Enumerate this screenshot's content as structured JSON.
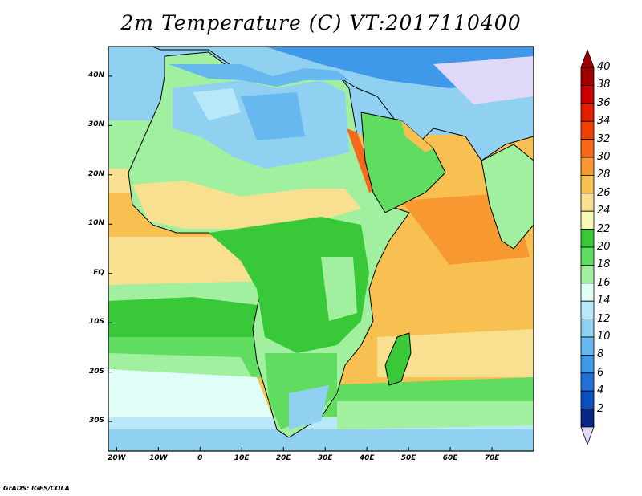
{
  "title": "2m Temperature (C) VT:2017110400",
  "credit": "GrADS: IGES/COLA",
  "map": {
    "projection": "latlon",
    "lon_range": [
      -22,
      80
    ],
    "lat_range": [
      -36,
      46
    ],
    "lat_labels": [
      {
        "value": 40,
        "label": "40N"
      },
      {
        "value": 30,
        "label": "30N"
      },
      {
        "value": 20,
        "label": "20N"
      },
      {
        "value": 10,
        "label": "10N"
      },
      {
        "value": 0,
        "label": "EQ"
      },
      {
        "value": -10,
        "label": "10S"
      },
      {
        "value": -20,
        "label": "20S"
      },
      {
        "value": -30,
        "label": "30S"
      }
    ],
    "lon_labels": [
      {
        "value": -20,
        "label": "20W"
      },
      {
        "value": -10,
        "label": "10W"
      },
      {
        "value": 0,
        "label": "0"
      },
      {
        "value": 10,
        "label": "10E"
      },
      {
        "value": 20,
        "label": "20E"
      },
      {
        "value": 30,
        "label": "30E"
      },
      {
        "value": 40,
        "label": "40E"
      },
      {
        "value": 50,
        "label": "50E"
      },
      {
        "value": 60,
        "label": "60E"
      },
      {
        "value": 70,
        "label": "70E"
      }
    ]
  },
  "colorbar": {
    "labels": [
      "40",
      "38",
      "36",
      "34",
      "32",
      "30",
      "28",
      "26",
      "24",
      "22",
      "20",
      "18",
      "16",
      "14",
      "12",
      "10",
      "8",
      "6",
      "4",
      "2"
    ],
    "colors": [
      "#a00000",
      "#c80000",
      "#e02000",
      "#f04000",
      "#f86818",
      "#f89830",
      "#f8c050",
      "#f8e090",
      "#f8f8b8",
      "#38c838",
      "#60dc60",
      "#a0f0a0",
      "#e0fff8",
      "#b8e8f8",
      "#90d0f0",
      "#68b8f0",
      "#4098e8",
      "#2070d8",
      "#0850c0",
      "#082888"
    ],
    "over_color": "#a00000",
    "under_color": "#e0d8f8"
  }
}
